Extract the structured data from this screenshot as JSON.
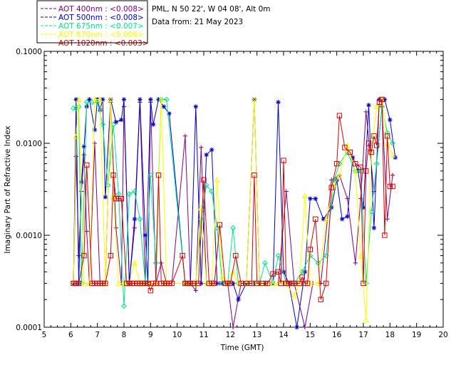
{
  "chart_data": {
    "type": "line",
    "location_text": "PML, N 50 22', W 04 08', Alt 0m",
    "date_text": "Data from: 21 May 2023",
    "xlabel": "Time (GMT)",
    "ylabel": "Imaginary Part of Refractive Index",
    "xlim": [
      5,
      20
    ],
    "ylim": [
      0.0001,
      0.1
    ],
    "yscale": "log",
    "xticks": [
      "5",
      "6",
      "7",
      "8",
      "9",
      "10",
      "11",
      "12",
      "13",
      "14",
      "15",
      "16",
      "17",
      "18",
      "19",
      "20"
    ],
    "yticks": [
      "0.1000",
      "0.0100",
      "0.0010",
      "0.0001"
    ],
    "legend_position": "top-left",
    "series": [
      {
        "name": "AOT  400nm : <0.008>",
        "color": "#800080",
        "marker": "plus",
        "x": [
          6.1,
          6.2,
          6.3,
          6.4,
          6.5,
          6.6,
          6.7,
          6.9,
          7.1,
          7.3,
          7.5,
          7.7,
          7.9,
          8.0,
          8.2,
          8.4,
          8.6,
          8.8,
          9.0,
          9.2,
          9.4,
          9.6,
          9.8,
          10.3,
          10.5,
          10.7,
          10.9,
          11.1,
          11.3,
          11.6,
          11.9,
          12.1,
          12.4,
          12.8,
          13.1,
          13.4,
          13.8,
          14.1,
          14.4,
          14.8,
          15.1,
          15.4,
          15.8,
          16.1,
          16.4,
          16.7,
          16.9,
          17.1,
          17.4,
          17.7,
          17.9,
          18.1
        ],
        "y": [
          0.0003,
          0.0072,
          0.0006,
          0.003,
          0.0075,
          0.0011,
          0.0003,
          0.01,
          0.0003,
          0.0003,
          0.028,
          0.0012,
          0.0003,
          0.025,
          0.0003,
          0.0012,
          0.028,
          0.0003,
          0.028,
          0.0003,
          0.0005,
          0.0003,
          0.0003,
          0.012,
          0.0003,
          0.00025,
          0.009,
          0.0003,
          0.0003,
          0.0003,
          0.0003,
          0.0001,
          0.0003,
          0.0003,
          0.0003,
          0.0003,
          0.0003,
          0.003,
          0.0003,
          0.0001,
          0.0003,
          0.0003,
          0.004,
          0.0045,
          0.0025,
          0.0005,
          0.0025,
          0.022,
          0.003,
          0.025,
          0.0015,
          0.0045
        ]
      },
      {
        "name": "AOT  500nm : <0.008>",
        "color": "#0000cd",
        "marker": "star",
        "x": [
          6.1,
          6.2,
          6.3,
          6.4,
          6.5,
          6.6,
          6.7,
          6.9,
          7.0,
          7.1,
          7.2,
          7.3,
          7.5,
          7.7,
          7.9,
          8.0,
          8.2,
          8.4,
          8.6,
          8.8,
          8.9,
          9.0,
          9.1,
          9.3,
          9.5,
          9.7,
          10.3,
          10.5,
          10.7,
          10.9,
          11.1,
          11.3,
          11.5,
          11.7,
          11.9,
          12.1,
          12.3,
          12.6,
          12.9,
          13.1,
          13.3,
          13.6,
          13.8,
          14.0,
          14.2,
          14.5,
          14.8,
          15.0,
          15.2,
          15.5,
          15.8,
          16.0,
          16.2,
          16.4,
          16.6,
          16.8,
          17.0,
          17.2,
          17.4,
          17.6,
          17.8,
          18.0,
          18.2
        ],
        "y": [
          0.0003,
          0.03,
          0.0003,
          0.0038,
          0.0092,
          0.025,
          0.03,
          0.014,
          0.03,
          0.023,
          0.03,
          0.0026,
          0.03,
          0.017,
          0.018,
          0.03,
          0.0003,
          0.0015,
          0.03,
          0.001,
          0.0003,
          0.03,
          0.016,
          0.03,
          0.025,
          0.021,
          0.0003,
          0.0003,
          0.025,
          0.0003,
          0.0075,
          0.0085,
          0.0003,
          0.0003,
          0.0003,
          0.0003,
          0.0002,
          0.0003,
          0.03,
          0.0003,
          0.0003,
          0.0003,
          0.028,
          0.0004,
          0.0003,
          0.0001,
          0.0004,
          0.0025,
          0.0025,
          0.0015,
          0.002,
          0.004,
          0.0015,
          0.0016,
          0.007,
          0.005,
          0.002,
          0.026,
          0.0012,
          0.03,
          0.03,
          0.018,
          0.007
        ]
      },
      {
        "name": "AOT  675nm : <0.007>",
        "color": "#00e68a",
        "marker": "diamond",
        "x": [
          6.1,
          6.2,
          6.3,
          6.4,
          6.6,
          6.8,
          7.0,
          7.2,
          7.4,
          7.6,
          7.8,
          8.0,
          8.2,
          8.4,
          8.6,
          8.8,
          9.0,
          9.2,
          9.4,
          9.6,
          10.3,
          10.5,
          10.7,
          10.9,
          11.1,
          11.3,
          11.5,
          11.7,
          11.9,
          12.1,
          12.3,
          12.6,
          12.9,
          13.1,
          13.3,
          13.6,
          13.8,
          14.1,
          14.4,
          14.7,
          15.0,
          15.3,
          15.6,
          15.9,
          16.1,
          16.4,
          16.7,
          16.9,
          17.1,
          17.3,
          17.5,
          17.7,
          17.9,
          18.1
        ],
        "y": [
          0.024,
          0.024,
          0.025,
          0.0003,
          0.028,
          0.028,
          0.028,
          0.016,
          0.0035,
          0.016,
          0.0028,
          0.00017,
          0.0028,
          0.003,
          0.0015,
          0.0003,
          0.0045,
          0.0005,
          0.03,
          0.03,
          0.0003,
          0.0003,
          0.0003,
          0.0015,
          0.0035,
          0.003,
          0.0012,
          0.0003,
          0.0003,
          0.0012,
          0.0003,
          0.0003,
          0.0003,
          0.0003,
          0.0005,
          0.0003,
          0.0006,
          0.0003,
          0.0003,
          0.0004,
          0.0006,
          0.0005,
          0.0006,
          0.004,
          0.006,
          0.008,
          0.005,
          0.005,
          0.0003,
          0.0018,
          0.006,
          0.025,
          0.013,
          0.01
        ]
      },
      {
        "name": "AOT  870nm : <0.006>",
        "color": "#ffff00",
        "marker": "triangle",
        "x": [
          6.1,
          6.2,
          6.3,
          6.5,
          6.7,
          6.9,
          7.1,
          7.3,
          7.5,
          7.6,
          7.8,
          8.0,
          8.2,
          8.4,
          8.6,
          8.8,
          9.0,
          9.2,
          9.4,
          9.6,
          10.3,
          10.5,
          10.7,
          10.9,
          11.1,
          11.3,
          11.5,
          11.7,
          11.9,
          12.1,
          12.3,
          12.6,
          12.9,
          13.1,
          13.3,
          13.6,
          13.8,
          14.1,
          14.4,
          14.6,
          14.8,
          15.0,
          15.3,
          15.6,
          15.9,
          16.1,
          16.4,
          16.7,
          16.9,
          17.1,
          17.3,
          17.5,
          17.7,
          17.9,
          18.1
        ],
        "y": [
          0.0003,
          0.012,
          0.03,
          0.0003,
          0.0003,
          0.03,
          0.03,
          0.0003,
          0.03,
          0.0026,
          0.0003,
          0.0003,
          0.0003,
          0.0005,
          0.0003,
          0.0003,
          0.0003,
          0.0003,
          0.03,
          0.0003,
          0.0003,
          0.0003,
          0.0003,
          0.002,
          0.0003,
          0.0003,
          0.004,
          0.00035,
          0.0003,
          0.0004,
          0.0003,
          0.0003,
          0.03,
          0.0003,
          0.0003,
          0.0003,
          0.0003,
          0.0003,
          0.00022,
          0.0003,
          0.0027,
          0.0003,
          0.0003,
          0.0015,
          0.0035,
          0.0045,
          0.0095,
          0.005,
          0.0006,
          0.00012,
          0.008,
          0.025,
          0.03,
          0.01,
          0.0075
        ]
      },
      {
        "name": "AOT 1020nm : <0.003>",
        "color": "#dc0000",
        "marker": "square",
        "x": [
          6.1,
          6.2,
          6.3,
          6.5,
          6.6,
          6.8,
          6.9,
          7.0,
          7.1,
          7.2,
          7.3,
          7.5,
          7.6,
          7.7,
          7.8,
          7.9,
          8.1,
          8.2,
          8.3,
          8.4,
          8.5,
          8.6,
          8.7,
          8.8,
          8.9,
          9.0,
          9.1,
          9.2,
          9.3,
          9.4,
          9.5,
          9.6,
          9.7,
          9.8,
          10.2,
          10.3,
          10.4,
          10.5,
          10.6,
          10.8,
          11.0,
          11.2,
          11.3,
          11.4,
          11.6,
          11.8,
          11.9,
          12.0,
          12.2,
          12.4,
          12.6,
          12.8,
          12.9,
          13.0,
          13.2,
          13.4,
          13.6,
          13.8,
          13.9,
          14.0,
          14.1,
          14.2,
          14.3,
          14.4,
          14.6,
          14.7,
          14.8,
          14.9,
          15.0,
          15.2,
          15.4,
          15.6,
          15.8,
          16.0,
          16.1,
          16.3,
          16.5,
          16.7,
          16.9,
          17.0,
          17.1,
          17.2,
          17.3,
          17.4,
          17.5,
          17.6,
          17.7,
          17.8,
          17.9,
          18.0,
          18.1
        ],
        "y": [
          0.0003,
          0.0003,
          0.0003,
          0.0006,
          0.0058,
          0.0003,
          0.0003,
          0.0003,
          0.0003,
          0.0003,
          0.0003,
          0.0006,
          0.0045,
          0.0025,
          0.0025,
          0.0025,
          0.0003,
          0.0003,
          0.0003,
          0.0003,
          0.0003,
          0.0003,
          0.0003,
          0.0003,
          0.0003,
          0.00025,
          0.0003,
          0.0003,
          0.0045,
          0.0003,
          0.0003,
          0.0003,
          0.0003,
          0.0003,
          0.0006,
          0.0003,
          0.0003,
          0.0003,
          0.0003,
          0.0003,
          0.004,
          0.0003,
          0.0003,
          0.0003,
          0.0013,
          0.0003,
          0.0003,
          0.0003,
          0.0006,
          0.0003,
          0.0003,
          0.0003,
          0.0045,
          0.0003,
          0.0003,
          0.0003,
          0.00038,
          0.0004,
          0.0003,
          0.0065,
          0.0003,
          0.0003,
          0.0003,
          0.0003,
          0.0003,
          0.00035,
          0.0003,
          0.0003,
          0.0007,
          0.0015,
          0.0002,
          0.0003,
          0.0033,
          0.006,
          0.02,
          0.009,
          0.008,
          0.006,
          0.0055,
          0.0003,
          0.005,
          0.01,
          0.008,
          0.012,
          0.0095,
          0.028,
          0.03,
          0.001,
          0.012,
          0.0034,
          0.0034
        ]
      }
    ]
  }
}
